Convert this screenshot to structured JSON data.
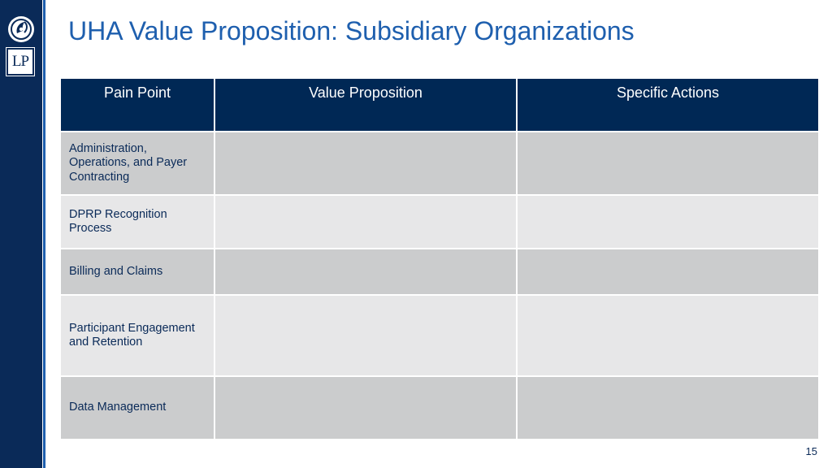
{
  "slide": {
    "title": "UHA Value Proposition: Subsidiary Organizations",
    "page_number": "15",
    "logo_text": "LP"
  },
  "table": {
    "headers": [
      "Pain Point",
      "Value Proposition",
      "Specific Actions"
    ],
    "rows": [
      {
        "pain_point": "Administration, Operations, and Payer Contracting",
        "value_proposition": "",
        "specific_actions": ""
      },
      {
        "pain_point": "DPRP Recognition Process",
        "value_proposition": "",
        "specific_actions": ""
      },
      {
        "pain_point": "Billing and Claims",
        "value_proposition": "",
        "specific_actions": ""
      },
      {
        "pain_point": "Participant Engagement and Retention",
        "value_proposition": "",
        "specific_actions": ""
      },
      {
        "pain_point": "Data Management",
        "value_proposition": "",
        "specific_actions": ""
      }
    ]
  },
  "colors": {
    "sidebar": "#0a2a58",
    "accent_line": "#1e5fae",
    "title": "#1e5fae",
    "header_background": "#002855",
    "row_dark": "#cbcccd",
    "row_light": "#e7e7e8"
  },
  "icons": {
    "top_logo": "circular-emblem-icon",
    "bottom_logo": "lp-monogram"
  }
}
